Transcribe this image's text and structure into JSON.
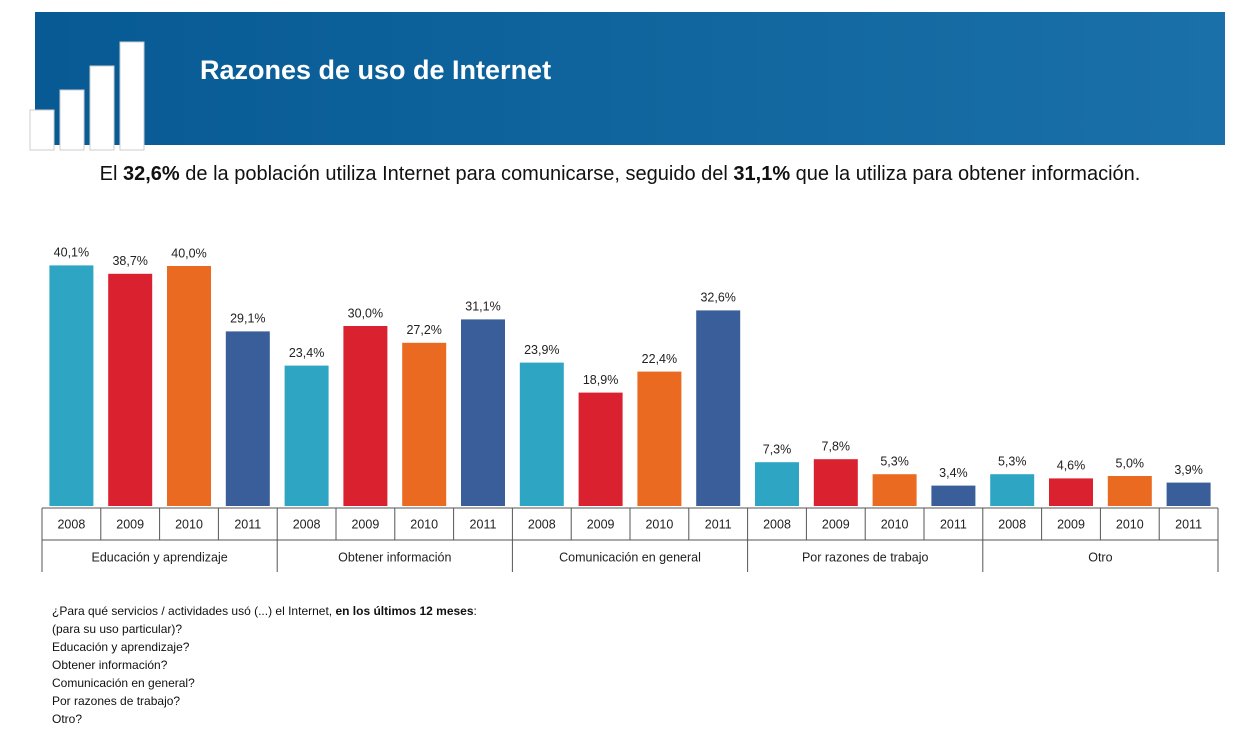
{
  "chart_data": {
    "type": "bar",
    "title": "Razones de uso de Internet",
    "subtitle": [
      {
        "text": "El "
      },
      {
        "text": "32,6%",
        "bold": true
      },
      {
        "text": " de la población utiliza Internet para comunicarse, seguido del "
      },
      {
        "text": "31,1%",
        "bold": true
      },
      {
        "text": " que la utiliza para obtener información."
      }
    ],
    "categories": [
      "Educación y aprendizaje",
      "Obtener información",
      "Comunicación en general",
      "Por razones de trabajo",
      "Otro"
    ],
    "series": [
      {
        "name": "2008",
        "color": "#2ea6c3",
        "values": [
          40.1,
          23.4,
          23.9,
          7.3,
          5.3
        ],
        "value_labels": [
          "40,1%",
          "23,4%",
          "23,9%",
          "7,3%",
          "5,3%"
        ]
      },
      {
        "name": "2009",
        "color": "#da2130",
        "values": [
          38.7,
          30.0,
          18.9,
          7.8,
          4.6
        ],
        "value_labels": [
          "38,7%",
          "30,0%",
          "18,9%",
          "7,8%",
          "4,6%"
        ]
      },
      {
        "name": "2010",
        "color": "#ea6a22",
        "values": [
          40.0,
          27.2,
          22.4,
          5.3,
          5.0
        ],
        "value_labels": [
          "40,0%",
          "27,2%",
          "22,4%",
          "5,3%",
          "5,0%"
        ]
      },
      {
        "name": "2011",
        "color": "#3a5e99",
        "values": [
          29.1,
          31.1,
          32.6,
          3.4,
          3.9
        ],
        "value_labels": [
          "29,1%",
          "31,1%",
          "32,6%",
          "3,4%",
          "3,9%"
        ]
      }
    ],
    "footnote": {
      "question": [
        {
          "text": "¿Para qué servicios / actividades usó (...) el Internet, "
        },
        {
          "text": "en los últimos 12 meses",
          "bold": true
        },
        {
          "text": ":"
        }
      ],
      "lines": [
        "(para su uso particular)?",
        "Educación y aprendizaje?",
        "Obtener información?",
        "Comunicación en general?",
        "Por razones de trabajo?",
        "Otro?"
      ]
    }
  }
}
